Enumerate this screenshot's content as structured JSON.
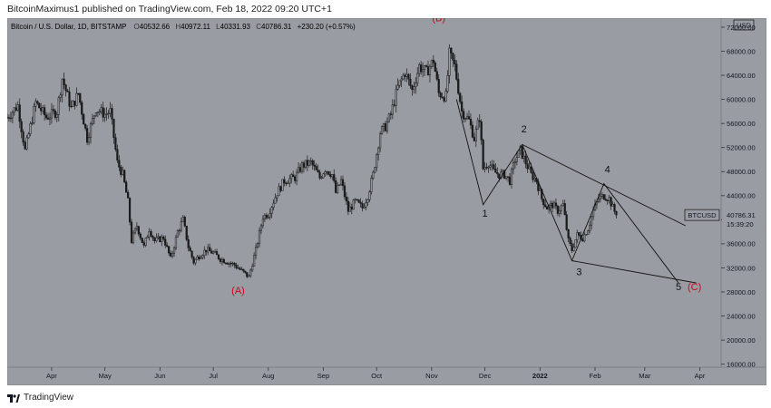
{
  "header": {
    "author": "BitcoinMaximus1",
    "published_text": "published on TradingView.com, Feb 18, 2022 09:20 UTC+1"
  },
  "legend": {
    "symbol_desc": "Bitcoin / U.S. Dollar, 1D, BITSTAMP",
    "o_label": "O",
    "o": "40532.66",
    "h_label": "H",
    "h": "40972.11",
    "l_label": "L",
    "l": "40331.93",
    "c_label": "C",
    "c": "40786.31",
    "change": "+230.20 (+0.57%)"
  },
  "currency_badge": "USD",
  "price_tag": {
    "symbol": "BTCUSD",
    "price": "40786.31",
    "countdown": "15:39:20",
    "value": 40786.31
  },
  "footer": {
    "logo_text": "TradingView"
  },
  "colors": {
    "background": "#9a9ca3",
    "candle": "#1a1a1a",
    "wave_red": "#d0021b",
    "wave_black": "#111111"
  },
  "chart_data": {
    "type": "candlestick",
    "title": "Bitcoin / U.S. Dollar, 1D, BITSTAMP",
    "ylabel": "USD",
    "ylim": [
      15500,
      73500
    ],
    "y_ticks": [
      {
        "label": "72000.00",
        "value": 72000
      },
      {
        "label": "68000.00",
        "value": 68000
      },
      {
        "label": "64000.00",
        "value": 64000
      },
      {
        "label": "60000.00",
        "value": 60000
      },
      {
        "label": "56000.00",
        "value": 56000
      },
      {
        "label": "52000.00",
        "value": 52000
      },
      {
        "label": "48000.00",
        "value": 48000
      },
      {
        "label": "44000.00",
        "value": 44000
      },
      {
        "label": "40000.00",
        "value": 40000
      },
      {
        "label": "36000.00",
        "value": 36000
      },
      {
        "label": "32000.00",
        "value": 32000
      },
      {
        "label": "28000.00",
        "value": 28000
      },
      {
        "label": "24000.00",
        "value": 24000
      },
      {
        "label": "20000.00",
        "value": 20000
      },
      {
        "label": "16000.00",
        "value": 16000
      }
    ],
    "x_ticks": [
      {
        "label": "Apr",
        "day": 25,
        "bold": false
      },
      {
        "label": "May",
        "day": 55,
        "bold": false
      },
      {
        "label": "Jun",
        "day": 86,
        "bold": false
      },
      {
        "label": "Jul",
        "day": 116,
        "bold": false
      },
      {
        "label": "Aug",
        "day": 147,
        "bold": false
      },
      {
        "label": "Sep",
        "day": 178,
        "bold": false
      },
      {
        "label": "Oct",
        "day": 208,
        "bold": false
      },
      {
        "label": "Nov",
        "day": 239,
        "bold": false
      },
      {
        "label": "Dec",
        "day": 269,
        "bold": false
      },
      {
        "label": "2022",
        "day": 300,
        "bold": true
      },
      {
        "label": "Feb",
        "day": 331,
        "bold": false
      },
      {
        "label": "Mar",
        "day": 359,
        "bold": false
      },
      {
        "label": "Apr",
        "day": 390,
        "bold": false
      }
    ],
    "x_domain_days": [
      0,
      402
    ],
    "price_path": [
      [
        0,
        57000
      ],
      [
        6,
        59000
      ],
      [
        10,
        51500
      ],
      [
        16,
        59500
      ],
      [
        22,
        57000
      ],
      [
        28,
        58000
      ],
      [
        31,
        63500
      ],
      [
        36,
        58500
      ],
      [
        40,
        61000
      ],
      [
        45,
        53500
      ],
      [
        50,
        58500
      ],
      [
        55,
        57500
      ],
      [
        58,
        58000
      ],
      [
        62,
        49500
      ],
      [
        65,
        47500
      ],
      [
        68,
        43000
      ],
      [
        70,
        36500
      ],
      [
        73,
        39000
      ],
      [
        77,
        35500
      ],
      [
        80,
        38500
      ],
      [
        83,
        36500
      ],
      [
        88,
        37000
      ],
      [
        92,
        33500
      ],
      [
        96,
        38000
      ],
      [
        99,
        40000
      ],
      [
        102,
        35500
      ],
      [
        105,
        33000
      ],
      [
        108,
        34000
      ],
      [
        112,
        35000
      ],
      [
        116,
        34500
      ],
      [
        120,
        33500
      ],
      [
        124,
        33000
      ],
      [
        128,
        32500
      ],
      [
        132,
        31500
      ],
      [
        136,
        30500
      ],
      [
        140,
        35000
      ],
      [
        144,
        40500
      ],
      [
        147,
        41000
      ],
      [
        152,
        44500
      ],
      [
        156,
        46500
      ],
      [
        162,
        47000
      ],
      [
        166,
        49000
      ],
      [
        171,
        49500
      ],
      [
        176,
        47000
      ],
      [
        179,
        48500
      ],
      [
        183,
        47500
      ],
      [
        185,
        44500
      ],
      [
        188,
        46500
      ],
      [
        192,
        41500
      ],
      [
        196,
        43000
      ],
      [
        200,
        42000
      ],
      [
        203,
        44000
      ],
      [
        206,
        47500
      ],
      [
        210,
        54500
      ],
      [
        213,
        55500
      ],
      [
        216,
        57500
      ],
      [
        220,
        62000
      ],
      [
        224,
        64500
      ],
      [
        228,
        61500
      ],
      [
        232,
        65500
      ],
      [
        236,
        64500
      ],
      [
        240,
        66500
      ],
      [
        243,
        61000
      ],
      [
        247,
        60500
      ],
      [
        249,
        67500
      ],
      [
        252,
        65500
      ],
      [
        256,
        58000
      ],
      [
        260,
        56500
      ],
      [
        263,
        53500
      ],
      [
        266,
        57000
      ],
      [
        268,
        48500
      ],
      [
        271,
        49500
      ],
      [
        274,
        48000
      ],
      [
        277,
        47500
      ],
      [
        280,
        47500
      ],
      [
        283,
        46500
      ],
      [
        286,
        50000
      ],
      [
        289,
        51500
      ],
      [
        292,
        49500
      ],
      [
        295,
        47500
      ],
      [
        298,
        46500
      ],
      [
        301,
        43500
      ],
      [
        304,
        42000
      ],
      [
        307,
        42500
      ],
      [
        310,
        41500
      ],
      [
        313,
        42500
      ],
      [
        316,
        36500
      ],
      [
        318,
        35000
      ],
      [
        321,
        37500
      ],
      [
        324,
        37000
      ],
      [
        327,
        38500
      ],
      [
        330,
        41500
      ],
      [
        333,
        43500
      ],
      [
        336,
        44000
      ],
      [
        339,
        43500
      ],
      [
        341,
        42000
      ],
      [
        343,
        40786.31
      ]
    ],
    "annotations": {
      "waves": [
        {
          "label": "(A)",
          "day": 130,
          "price": 27700,
          "color": "red",
          "name": "wave-A-label"
        },
        {
          "label": "(B)",
          "day": 243,
          "price": 73000,
          "color": "red",
          "name": "wave-B-label"
        },
        {
          "label": "(C)",
          "day": 387,
          "price": 28300,
          "color": "red",
          "name": "wave-C-label"
        },
        {
          "label": "1",
          "day": 269,
          "price": 40500,
          "color": "black",
          "name": "wave-1-label"
        },
        {
          "label": "2",
          "day": 291,
          "price": 54500,
          "color": "black",
          "name": "wave-2-label"
        },
        {
          "label": "3",
          "day": 322,
          "price": 30800,
          "color": "black",
          "name": "wave-3-label"
        },
        {
          "label": "4",
          "day": 338,
          "price": 47800,
          "color": "black",
          "name": "wave-4-label"
        },
        {
          "label": "5",
          "day": 378,
          "price": 28300,
          "color": "black",
          "name": "wave-5-label"
        }
      ],
      "wave_path": [
        [
          253,
          60000
        ],
        [
          268,
          42500
        ],
        [
          290,
          52500
        ],
        [
          318,
          33200
        ],
        [
          336,
          46000
        ],
        [
          378,
          29500
        ]
      ],
      "channel_upper": [
        [
          290,
          52500
        ],
        [
          382,
          39000
        ]
      ],
      "channel_lower": [
        [
          318,
          33200
        ],
        [
          388,
          29500
        ]
      ]
    }
  }
}
